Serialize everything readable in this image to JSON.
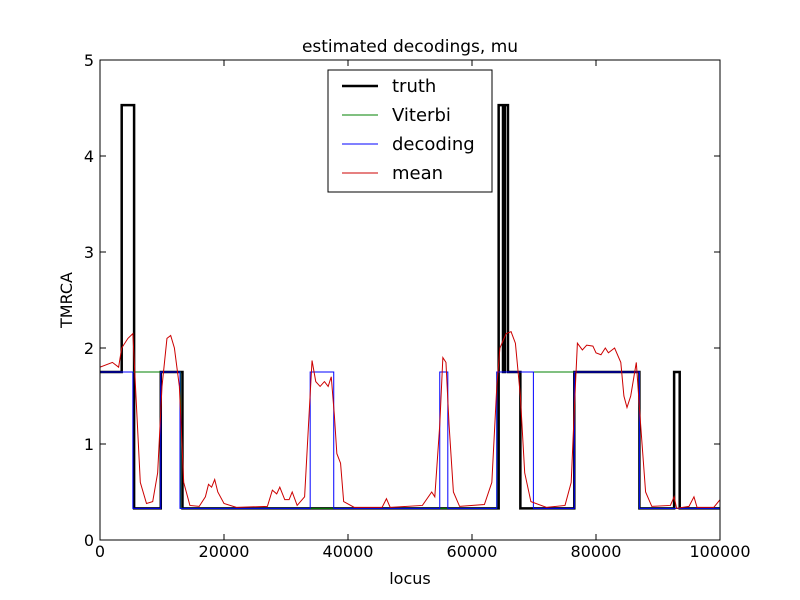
{
  "chart_data": {
    "type": "line",
    "title": "estimated decodings, mu",
    "x_label": "locus",
    "y_label": "TMRCA",
    "xlim": [
      0,
      100000
    ],
    "ylim": [
      0,
      5
    ],
    "xticks": [
      0,
      20000,
      40000,
      60000,
      80000,
      100000
    ],
    "yticks": [
      0,
      1,
      2,
      3,
      4,
      5
    ],
    "grid": false,
    "legend_position": "upper center",
    "series": [
      {
        "name": "truth",
        "color": "#000000",
        "linewidth": 2.5,
        "x": [
          0,
          3500,
          3500,
          5500,
          5500,
          9800,
          9800,
          13300,
          13300,
          64300,
          64300,
          65000,
          65000,
          65300,
          65300,
          65800,
          65800,
          67800,
          67800,
          76500,
          76500,
          87000,
          87000,
          92600,
          92600,
          93500,
          93500,
          100000
        ],
        "values": [
          1.75,
          1.75,
          4.53,
          4.53,
          0.33,
          0.33,
          1.75,
          1.75,
          0.33,
          0.33,
          4.53,
          4.53,
          1.75,
          1.75,
          4.53,
          4.53,
          1.75,
          1.75,
          0.33,
          0.33,
          1.75,
          1.75,
          0.33,
          0.33,
          1.75,
          1.75,
          0.33,
          0.33
        ]
      },
      {
        "name": "Viterbi",
        "color": "#008000",
        "linewidth": 1,
        "x": [
          0,
          13000,
          13000,
          64000,
          64000,
          87000,
          87000,
          100000
        ],
        "values": [
          1.75,
          1.75,
          0.33,
          0.33,
          1.75,
          1.75,
          0.33,
          0.33
        ]
      },
      {
        "name": "decoding",
        "color": "#0000ff",
        "linewidth": 1,
        "x": [
          0,
          5300,
          5300,
          9800,
          9800,
          12900,
          12900,
          33900,
          33900,
          37700,
          37700,
          54800,
          54800,
          56100,
          56100,
          64000,
          64000,
          69900,
          69900,
          76500,
          76500,
          87000,
          87000,
          100000
        ],
        "values": [
          1.75,
          1.75,
          0.33,
          0.33,
          1.75,
          1.75,
          0.33,
          0.33,
          1.75,
          1.75,
          0.33,
          0.33,
          1.75,
          1.75,
          0.33,
          0.33,
          1.75,
          1.75,
          0.33,
          0.33,
          1.75,
          1.75,
          0.33,
          0.33
        ]
      },
      {
        "name": "mean",
        "color": "#cc0000",
        "linewidth": 1,
        "x": [
          0,
          2000,
          3000,
          3500,
          4500,
          5300,
          5800,
          6500,
          7500,
          8500,
          9300,
          10000,
          10800,
          11400,
          12000,
          12800,
          13500,
          14500,
          16000,
          17000,
          17500,
          18000,
          18500,
          19000,
          20000,
          22000,
          27000,
          27800,
          28500,
          29000,
          29800,
          30500,
          31000,
          31800,
          33000,
          33800,
          34200,
          34800,
          35500,
          36200,
          36800,
          37300,
          37800,
          38200,
          38800,
          39300,
          41000,
          45500,
          46200,
          46800,
          52000,
          53500,
          54000,
          54800,
          55300,
          55800,
          56300,
          57000,
          58000,
          62000,
          63200,
          64000,
          64500,
          65500,
          66300,
          67000,
          67800,
          68500,
          69500,
          72000,
          75000,
          76000,
          76600,
          77000,
          77800,
          78500,
          79500,
          80000,
          80800,
          81500,
          82000,
          83000,
          84000,
          84500,
          85000,
          85600,
          86500,
          87200,
          88000,
          89000,
          92000,
          92600,
          93000,
          95000,
          95800,
          96300,
          99000,
          100000
        ],
        "values": [
          1.8,
          1.85,
          1.8,
          2.0,
          2.1,
          2.15,
          1.5,
          0.6,
          0.38,
          0.4,
          0.7,
          1.6,
          2.1,
          2.13,
          2.0,
          1.6,
          0.6,
          0.36,
          0.35,
          0.45,
          0.58,
          0.55,
          0.63,
          0.5,
          0.38,
          0.34,
          0.35,
          0.52,
          0.48,
          0.55,
          0.42,
          0.42,
          0.5,
          0.36,
          0.45,
          1.4,
          1.87,
          1.65,
          1.6,
          1.65,
          1.6,
          1.7,
          1.3,
          0.9,
          0.8,
          0.4,
          0.34,
          0.34,
          0.43,
          0.34,
          0.36,
          0.5,
          0.45,
          1.2,
          1.9,
          1.85,
          1.2,
          0.5,
          0.35,
          0.37,
          0.6,
          1.6,
          2.0,
          2.15,
          2.17,
          2.05,
          1.5,
          0.7,
          0.4,
          0.34,
          0.36,
          0.6,
          1.5,
          2.05,
          1.98,
          2.03,
          2.02,
          1.95,
          1.93,
          2.0,
          1.95,
          2.0,
          1.85,
          1.5,
          1.38,
          1.5,
          1.85,
          1.2,
          0.5,
          0.35,
          0.36,
          0.45,
          0.33,
          0.35,
          0.45,
          0.34,
          0.34,
          0.42
        ]
      }
    ]
  }
}
